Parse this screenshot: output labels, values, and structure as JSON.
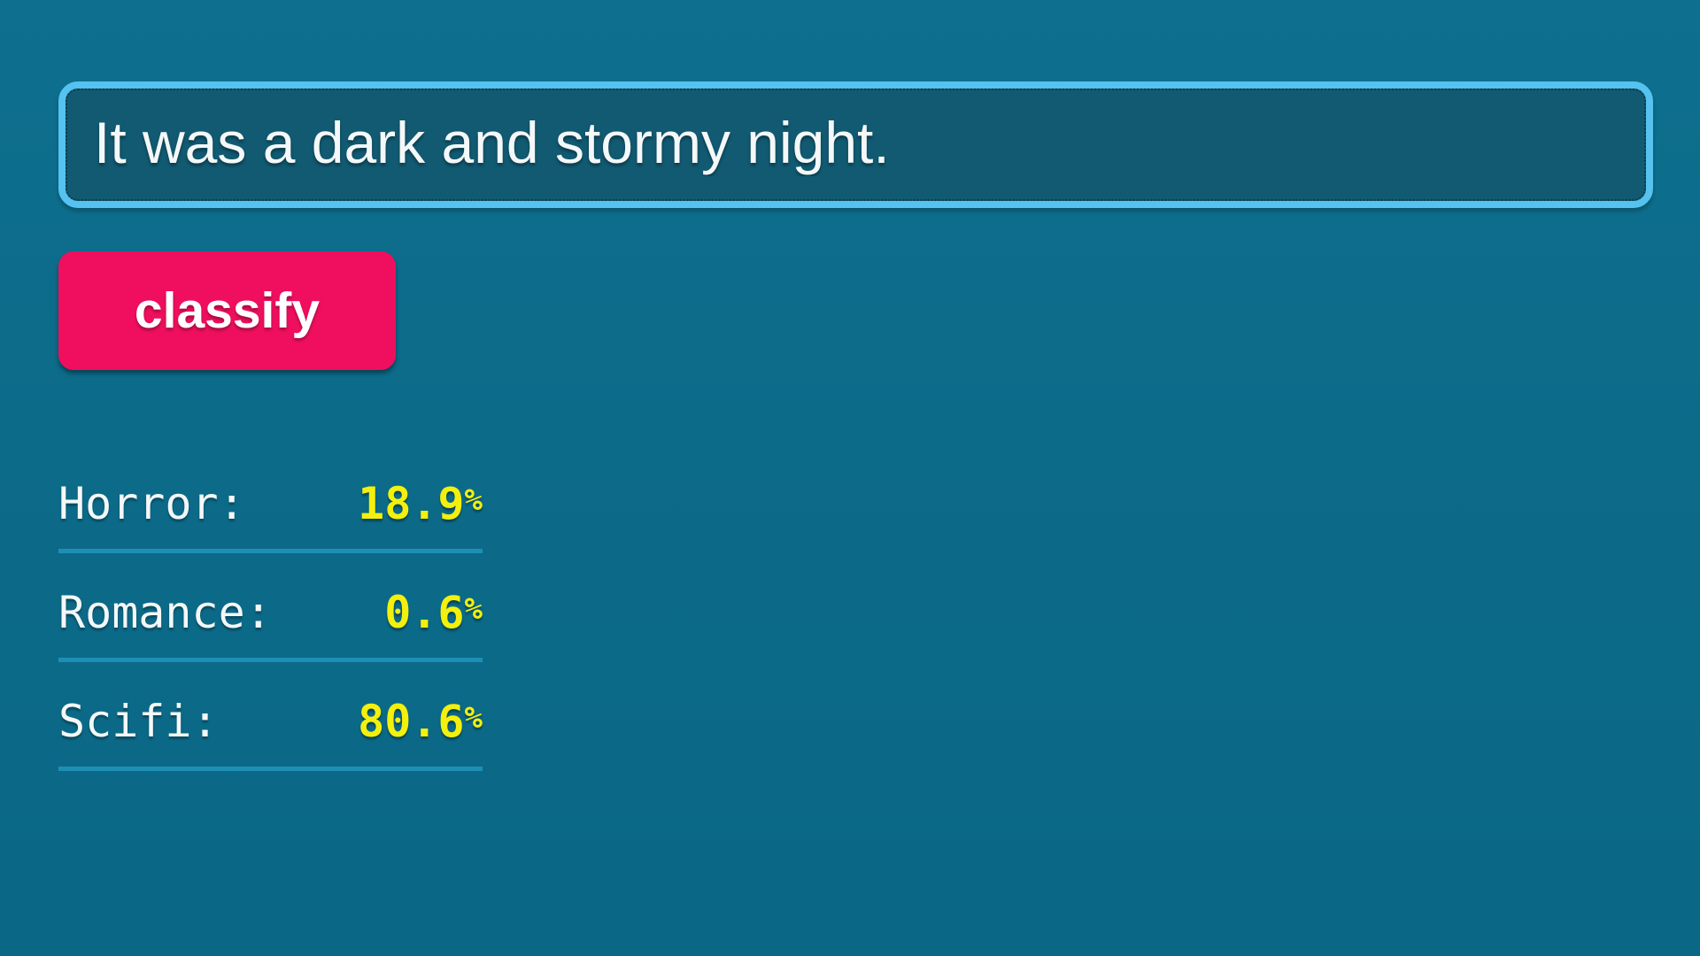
{
  "input": {
    "value": "It was a dark and stormy night."
  },
  "button": {
    "label": "classify"
  },
  "results": {
    "rows": [
      {
        "label": "Horror:",
        "value": "18.9",
        "unit": "%"
      },
      {
        "label": "Romance:",
        "value": "0.6",
        "unit": "%"
      },
      {
        "label": "Scifi:",
        "value": "80.6",
        "unit": "%"
      }
    ]
  },
  "colors": {
    "background": "#0c6b89",
    "input_fill": "#115a72",
    "input_border": "#55c2f0",
    "button": "#f00f5e",
    "value_yellow": "#f3f00d",
    "divider": "#1e8fb4",
    "text_white": "#f4f8f8"
  }
}
